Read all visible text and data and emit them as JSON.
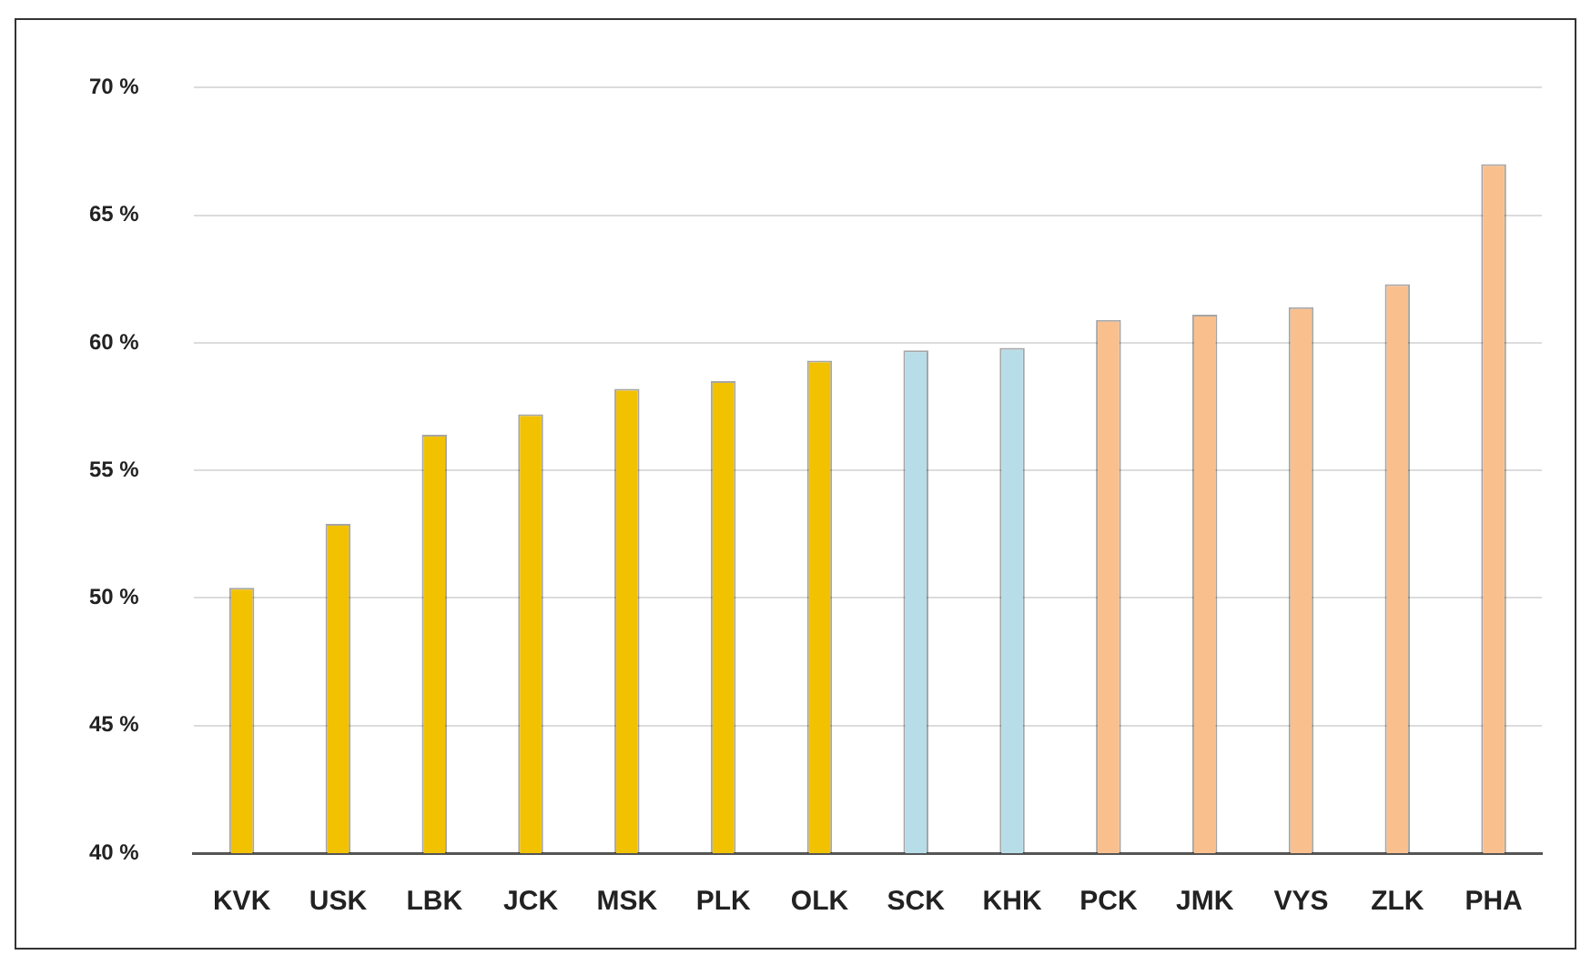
{
  "chart_data": {
    "type": "bar",
    "categories": [
      "KVK",
      "USK",
      "LBK",
      "JCK",
      "MSK",
      "PLK",
      "OLK",
      "SCK",
      "KHK",
      "PCK",
      "JMK",
      "VYS",
      "ZLK",
      "PHA"
    ],
    "values": [
      50.4,
      52.9,
      56.4,
      57.2,
      58.2,
      58.5,
      59.3,
      59.7,
      59.8,
      60.9,
      61.1,
      61.4,
      62.3,
      67.0
    ],
    "colors": [
      "#f2c200",
      "#f2c200",
      "#f2c200",
      "#f2c200",
      "#f2c200",
      "#f2c200",
      "#f2c200",
      "#b7dde8",
      "#b7dde8",
      "#f9c08e",
      "#f9c08e",
      "#f9c08e",
      "#f9c08e",
      "#f9c08e"
    ],
    "ylim": [
      40,
      70
    ],
    "yticks": [
      {
        "value": 40,
        "label": "40 %"
      },
      {
        "value": 45,
        "label": "45 %"
      },
      {
        "value": 50,
        "label": "50 %"
      },
      {
        "value": 55,
        "label": "55 %"
      },
      {
        "value": 60,
        "label": "60 %"
      },
      {
        "value": 65,
        "label": "65 %"
      },
      {
        "value": 70,
        "label": "70 %"
      }
    ],
    "grid": "y",
    "legend": false
  }
}
